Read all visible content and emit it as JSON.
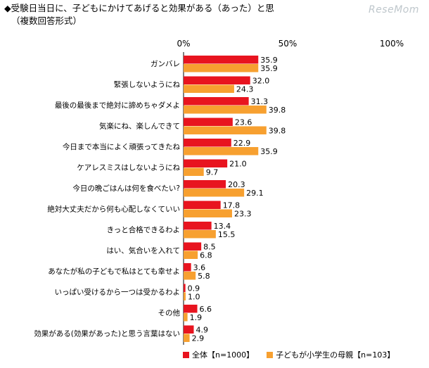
{
  "header": {
    "title": "◆受験日当日に、子どもにかけてあげると効果がある（あった）と思",
    "subtitle": "（複数回答形式）",
    "watermark": "ReseMom"
  },
  "chart_data": {
    "type": "bar",
    "orientation": "horizontal",
    "title": "◆受験日当日に、子どもにかけてあげると効果がある（あった）と思",
    "subtitle": "（複数回答形式）",
    "xlim": [
      0,
      100
    ],
    "x_ticks": [
      "0%",
      "50%",
      "100%"
    ],
    "x_tick_values": [
      0,
      50,
      100
    ],
    "legend_position": "bottom",
    "categories": [
      "ガンバレ",
      "緊張しないようにね",
      "最後の最後まで絶対に諦めちゃダメよ",
      "気楽にね、楽しんできて",
      "今日まで本当によく頑張ってきたね",
      "ケアレスミスはしないようにね",
      "今日の晩ごはんは何を食べたい?",
      "絶対大丈夫だから何も心配しなくていい",
      "きっと合格できるわよ",
      "はい、気合いを入れて",
      "あなたが私の子どもで私はとても幸せよ",
      "いっぱい受けるから一つは受かるわよ",
      "その他",
      "効果がある(効果があった)と思う言葉はない"
    ],
    "series": [
      {
        "name": "全体【n=1000】",
        "color": "#e8141f",
        "values": [
          35.9,
          32.0,
          31.3,
          23.6,
          22.9,
          21.0,
          20.3,
          17.8,
          13.4,
          8.5,
          3.6,
          0.9,
          6.6,
          4.9
        ],
        "labels": [
          "35.9",
          "32.0",
          "31.3",
          "23.6",
          "22.9",
          "21.0",
          "20.3",
          "17.8",
          "13.4",
          "8.5",
          "3.6",
          "0.9",
          "6.6",
          "4.9"
        ]
      },
      {
        "name": "子どもが小学生の母親【n=103】",
        "color": "#f7a030",
        "values": [
          35.9,
          24.3,
          39.8,
          39.8,
          35.9,
          9.7,
          29.1,
          23.3,
          15.5,
          6.8,
          5.8,
          1.0,
          1.9,
          2.9
        ],
        "labels": [
          "35.9",
          "24.3",
          "39.8",
          "39.8",
          "35.9",
          "9.7",
          "29.1",
          "23.3",
          "15.5",
          "6.8",
          "5.8",
          "1.0",
          "1.9",
          "2.9"
        ]
      }
    ]
  }
}
